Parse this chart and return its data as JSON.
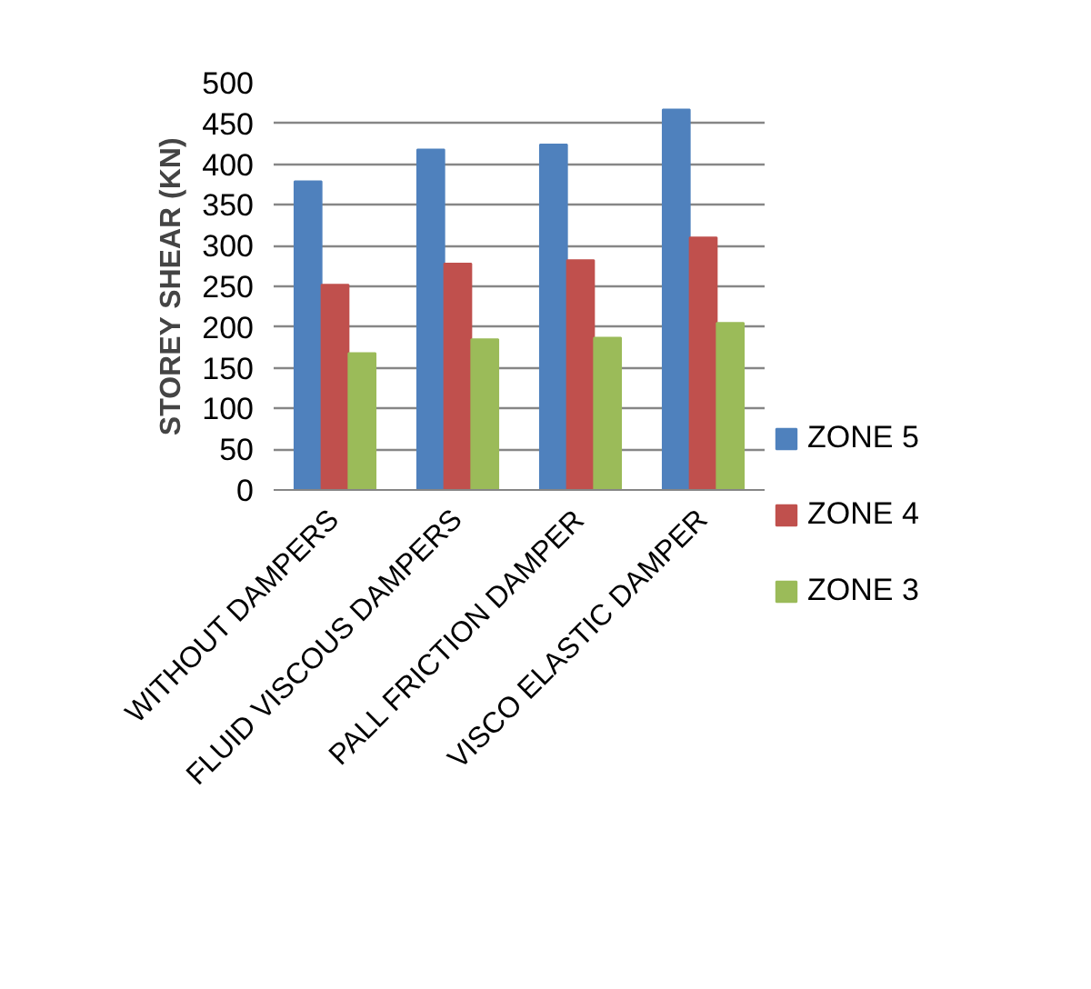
{
  "chart_data": {
    "type": "bar",
    "ylabel": "STOREY SHEAR (KN)",
    "categories": [
      "WITHOUT DAMPERS",
      "FLUID VISCOUS DAMPERS",
      "PALL FRICTION DAMPER",
      "VISCO ELASTIC DAMPER"
    ],
    "series": [
      {
        "name": "ZONE 5",
        "color": "#4f81bd",
        "values": [
          379,
          418,
          424,
          467
        ]
      },
      {
        "name": "ZONE 4",
        "color": "#c0504d",
        "values": [
          252,
          278,
          282,
          310
        ]
      },
      {
        "name": "ZONE 3",
        "color": "#9bbb59",
        "values": [
          168,
          185,
          187,
          205
        ]
      }
    ],
    "ylim": [
      0,
      500
    ],
    "yticks": [
      0,
      50,
      100,
      150,
      200,
      250,
      300,
      350,
      400,
      450,
      500
    ],
    "grid": "y",
    "legend": "right"
  }
}
